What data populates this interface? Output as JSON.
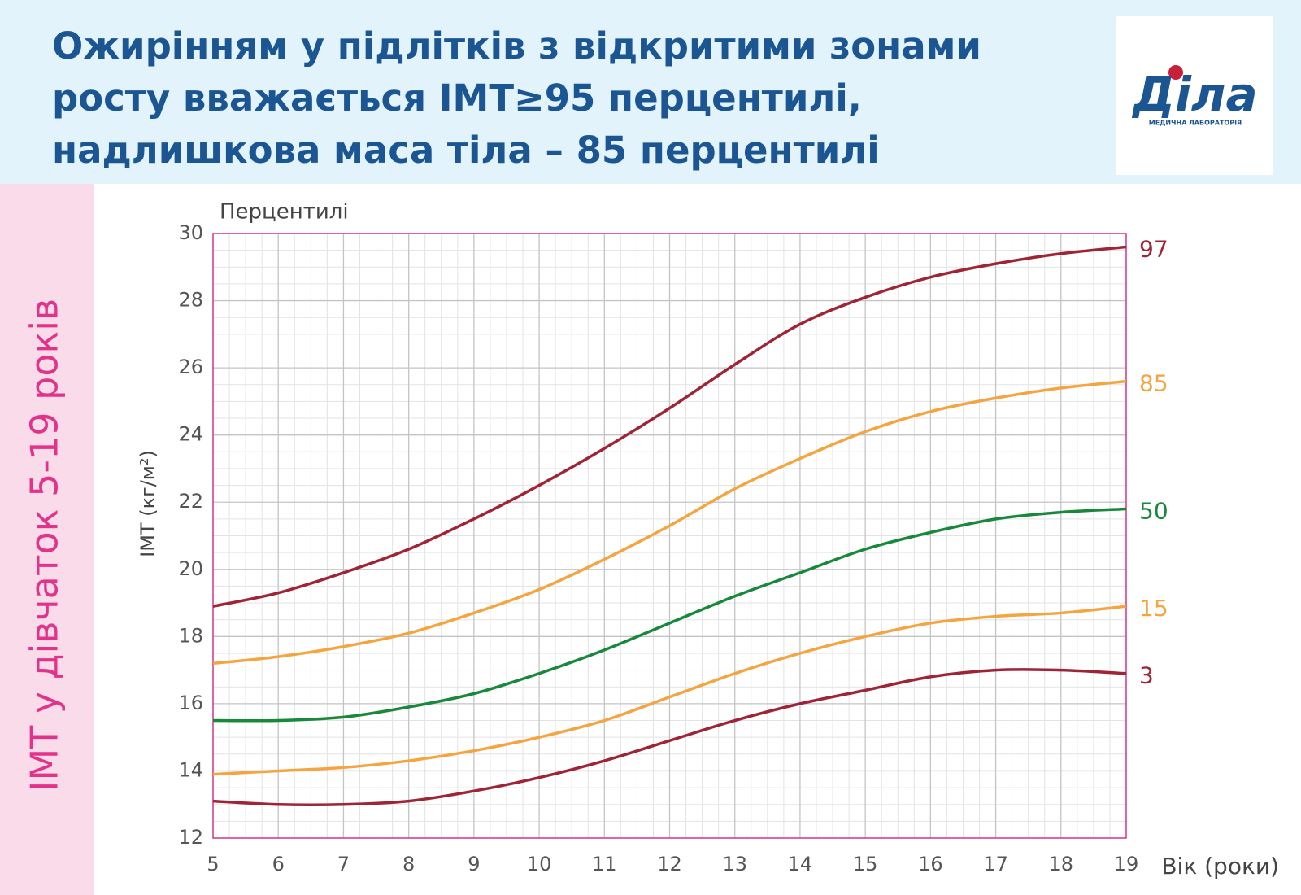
{
  "header": {
    "title_lines": [
      "Ожирінням у підлітків з відкритими зонами",
      "росту вважається ІМТ≥95 перцентилі,",
      "надлишкова маса тіла – 85 перцентилі"
    ],
    "logo": {
      "name": "Діла",
      "subtitle": "МЕДИЧНА ЛАБОРАТОРІЯ"
    }
  },
  "side_label": "ІМТ у дівчаток 5-19 років",
  "chart_data": {
    "type": "line",
    "legend_title": "Перцентилі",
    "x_label": "Вік (роки)",
    "y_label": "ІМТ (кг/м²)",
    "x": [
      5,
      6,
      7,
      8,
      9,
      10,
      11,
      12,
      13,
      14,
      15,
      16,
      17,
      18,
      19
    ],
    "xlim": [
      5,
      19
    ],
    "xticks": [
      5,
      6,
      7,
      8,
      9,
      10,
      11,
      12,
      13,
      14,
      15,
      16,
      17,
      18,
      19
    ],
    "ylim": [
      12,
      30
    ],
    "yticks": [
      12,
      14,
      16,
      18,
      20,
      22,
      24,
      26,
      28,
      30
    ],
    "grid": true,
    "series": [
      {
        "name": "97",
        "color": "#9e2436",
        "values": [
          18.9,
          19.3,
          19.9,
          20.6,
          21.5,
          22.5,
          23.6,
          24.8,
          26.1,
          27.3,
          28.1,
          28.7,
          29.1,
          29.4,
          29.6
        ]
      },
      {
        "name": "85",
        "color": "#f5a540",
        "values": [
          17.2,
          17.4,
          17.7,
          18.1,
          18.7,
          19.4,
          20.3,
          21.3,
          22.4,
          23.3,
          24.1,
          24.7,
          25.1,
          25.4,
          25.6
        ]
      },
      {
        "name": "50",
        "color": "#18883a",
        "values": [
          15.5,
          15.5,
          15.6,
          15.9,
          16.3,
          16.9,
          17.6,
          18.4,
          19.2,
          19.9,
          20.6,
          21.1,
          21.5,
          21.7,
          21.8
        ]
      },
      {
        "name": "15",
        "color": "#f5a540",
        "values": [
          13.9,
          14.0,
          14.1,
          14.3,
          14.6,
          15.0,
          15.5,
          16.2,
          16.9,
          17.5,
          18.0,
          18.4,
          18.6,
          18.7,
          18.9
        ]
      },
      {
        "name": "3",
        "color": "#9e2436",
        "values": [
          13.1,
          13.0,
          13.0,
          13.1,
          13.4,
          13.8,
          14.3,
          14.9,
          15.5,
          16.0,
          16.4,
          16.8,
          17.0,
          17.0,
          16.9
        ]
      }
    ]
  }
}
